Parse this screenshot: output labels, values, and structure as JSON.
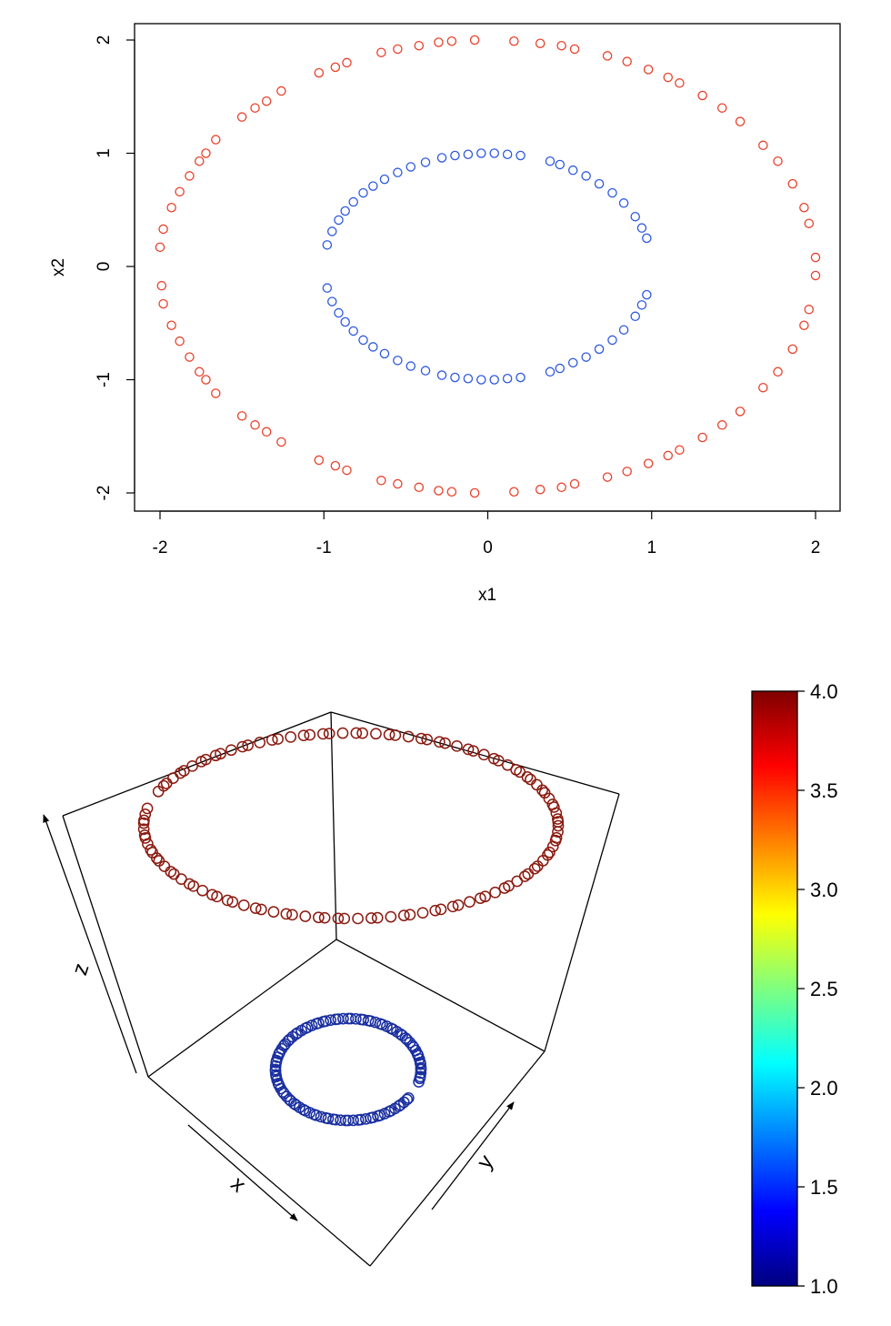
{
  "chart_data": [
    {
      "type": "scatter",
      "title": "",
      "xlabel": "x1",
      "ylabel": "x2",
      "xlim": [
        -2.15,
        2.15
      ],
      "ylim": [
        -2.15,
        2.15
      ],
      "xticks": [
        "-2",
        "-1",
        "0",
        "1",
        "2"
      ],
      "yticks": [
        "-2",
        "-1",
        "0",
        "1",
        "2"
      ],
      "grid": false,
      "series": [
        {
          "color": "#e8412b",
          "shape": "circle",
          "radius": 2,
          "points": [
            [
              -1.98,
              0.33
            ],
            [
              -2.0,
              0.17
            ],
            [
              -1.99,
              -0.17
            ],
            [
              -1.98,
              -0.33
            ],
            [
              -1.93,
              0.52
            ],
            [
              -1.88,
              0.66
            ],
            [
              -1.82,
              0.8
            ],
            [
              -1.76,
              0.93
            ],
            [
              -1.72,
              1.0
            ],
            [
              -1.66,
              1.12
            ],
            [
              -1.5,
              1.32
            ],
            [
              -1.42,
              1.4
            ],
            [
              -1.35,
              1.46
            ],
            [
              -1.26,
              1.55
            ],
            [
              -1.03,
              1.71
            ],
            [
              -0.93,
              1.76
            ],
            [
              -0.86,
              1.8
            ],
            [
              -0.65,
              1.89
            ],
            [
              -0.55,
              1.92
            ],
            [
              -0.42,
              1.95
            ],
            [
              -0.3,
              1.98
            ],
            [
              -0.22,
              1.99
            ],
            [
              -0.08,
              2.0
            ],
            [
              0.16,
              1.99
            ],
            [
              0.32,
              1.97
            ],
            [
              0.45,
              1.95
            ],
            [
              0.53,
              1.92
            ],
            [
              0.73,
              1.86
            ],
            [
              0.85,
              1.81
            ],
            [
              0.98,
              1.74
            ],
            [
              1.1,
              1.67
            ],
            [
              1.17,
              1.62
            ],
            [
              1.31,
              1.51
            ],
            [
              1.43,
              1.4
            ],
            [
              1.54,
              1.28
            ],
            [
              1.68,
              1.07
            ],
            [
              1.77,
              0.93
            ],
            [
              1.86,
              0.73
            ],
            [
              1.93,
              0.52
            ],
            [
              1.96,
              0.38
            ],
            [
              2.0,
              0.08
            ],
            [
              2.0,
              -0.08
            ],
            [
              1.96,
              -0.38
            ],
            [
              1.93,
              -0.52
            ],
            [
              1.86,
              -0.73
            ],
            [
              1.77,
              -0.93
            ],
            [
              1.68,
              -1.07
            ],
            [
              1.54,
              -1.28
            ],
            [
              1.43,
              -1.4
            ],
            [
              1.31,
              -1.51
            ],
            [
              1.17,
              -1.62
            ],
            [
              1.1,
              -1.67
            ],
            [
              0.98,
              -1.74
            ],
            [
              0.85,
              -1.81
            ],
            [
              0.73,
              -1.86
            ],
            [
              0.53,
              -1.92
            ],
            [
              0.45,
              -1.95
            ],
            [
              0.32,
              -1.97
            ],
            [
              0.16,
              -1.99
            ],
            [
              -0.08,
              -2.0
            ],
            [
              -0.22,
              -1.99
            ],
            [
              -0.3,
              -1.98
            ],
            [
              -0.42,
              -1.95
            ],
            [
              -0.55,
              -1.92
            ],
            [
              -0.65,
              -1.89
            ],
            [
              -0.86,
              -1.8
            ],
            [
              -0.93,
              -1.76
            ],
            [
              -1.03,
              -1.71
            ],
            [
              -1.26,
              -1.55
            ],
            [
              -1.35,
              -1.46
            ],
            [
              -1.42,
              -1.4
            ],
            [
              -1.5,
              -1.32
            ],
            [
              -1.66,
              -1.12
            ],
            [
              -1.72,
              -1.0
            ],
            [
              -1.76,
              -0.93
            ],
            [
              -1.82,
              -0.8
            ],
            [
              -1.88,
              -0.66
            ],
            [
              -1.93,
              -0.52
            ]
          ]
        },
        {
          "color": "#2d58e0",
          "shape": "circle",
          "radius": 2,
          "points": [
            [
              -0.98,
              0.19
            ],
            [
              -0.95,
              0.31
            ],
            [
              -0.91,
              0.41
            ],
            [
              -0.87,
              0.49
            ],
            [
              -0.82,
              0.57
            ],
            [
              -0.76,
              0.65
            ],
            [
              -0.7,
              0.71
            ],
            [
              -0.63,
              0.77
            ],
            [
              -0.55,
              0.83
            ],
            [
              -0.47,
              0.88
            ],
            [
              -0.38,
              0.92
            ],
            [
              -0.28,
              0.96
            ],
            [
              -0.2,
              0.98
            ],
            [
              -0.12,
              0.99
            ],
            [
              -0.04,
              1.0
            ],
            [
              0.04,
              1.0
            ],
            [
              0.12,
              0.99
            ],
            [
              0.2,
              0.98
            ],
            [
              0.38,
              0.93
            ],
            [
              0.44,
              0.9
            ],
            [
              0.52,
              0.85
            ],
            [
              0.6,
              0.8
            ],
            [
              0.68,
              0.73
            ],
            [
              0.76,
              0.65
            ],
            [
              0.83,
              0.56
            ],
            [
              0.9,
              0.44
            ],
            [
              0.94,
              0.34
            ],
            [
              0.97,
              0.25
            ],
            [
              0.97,
              -0.25
            ],
            [
              0.94,
              -0.34
            ],
            [
              0.9,
              -0.44
            ],
            [
              0.83,
              -0.56
            ],
            [
              0.76,
              -0.65
            ],
            [
              0.68,
              -0.73
            ],
            [
              0.6,
              -0.8
            ],
            [
              0.52,
              -0.85
            ],
            [
              0.44,
              -0.9
            ],
            [
              0.38,
              -0.93
            ],
            [
              0.2,
              -0.98
            ],
            [
              0.12,
              -0.99
            ],
            [
              0.04,
              -1.0
            ],
            [
              -0.04,
              -1.0
            ],
            [
              -0.12,
              -0.99
            ],
            [
              -0.2,
              -0.98
            ],
            [
              -0.28,
              -0.96
            ],
            [
              -0.38,
              -0.92
            ],
            [
              -0.47,
              -0.88
            ],
            [
              -0.55,
              -0.83
            ],
            [
              -0.63,
              -0.77
            ],
            [
              -0.7,
              -0.71
            ],
            [
              -0.76,
              -0.65
            ],
            [
              -0.82,
              -0.57
            ],
            [
              -0.87,
              -0.49
            ],
            [
              -0.91,
              -0.41
            ],
            [
              -0.95,
              -0.31
            ],
            [
              -0.98,
              -0.19
            ]
          ]
        }
      ]
    },
    {
      "type": "scatter-3d",
      "title": "",
      "xlabel": "x",
      "ylabel": "y",
      "zlabel": "z",
      "colorbar": {
        "range": [
          1.0,
          4.0
        ],
        "ticks": [
          "4.0",
          "3.5",
          "3.0",
          "2.5",
          "2.0",
          "1.5",
          "1.0"
        ],
        "colors": [
          "#00007f",
          "#0000ff",
          "#007fff",
          "#00ffff",
          "#7fff7f",
          "#ffff00",
          "#ff7f00",
          "#ff0000",
          "#7f0000"
        ]
      },
      "series": [
        {
          "z": 4.0,
          "radius": 2,
          "color": "#8b1a10"
        },
        {
          "z": 1.0,
          "radius": 1,
          "color": "#1a2fa0"
        }
      ]
    }
  ]
}
